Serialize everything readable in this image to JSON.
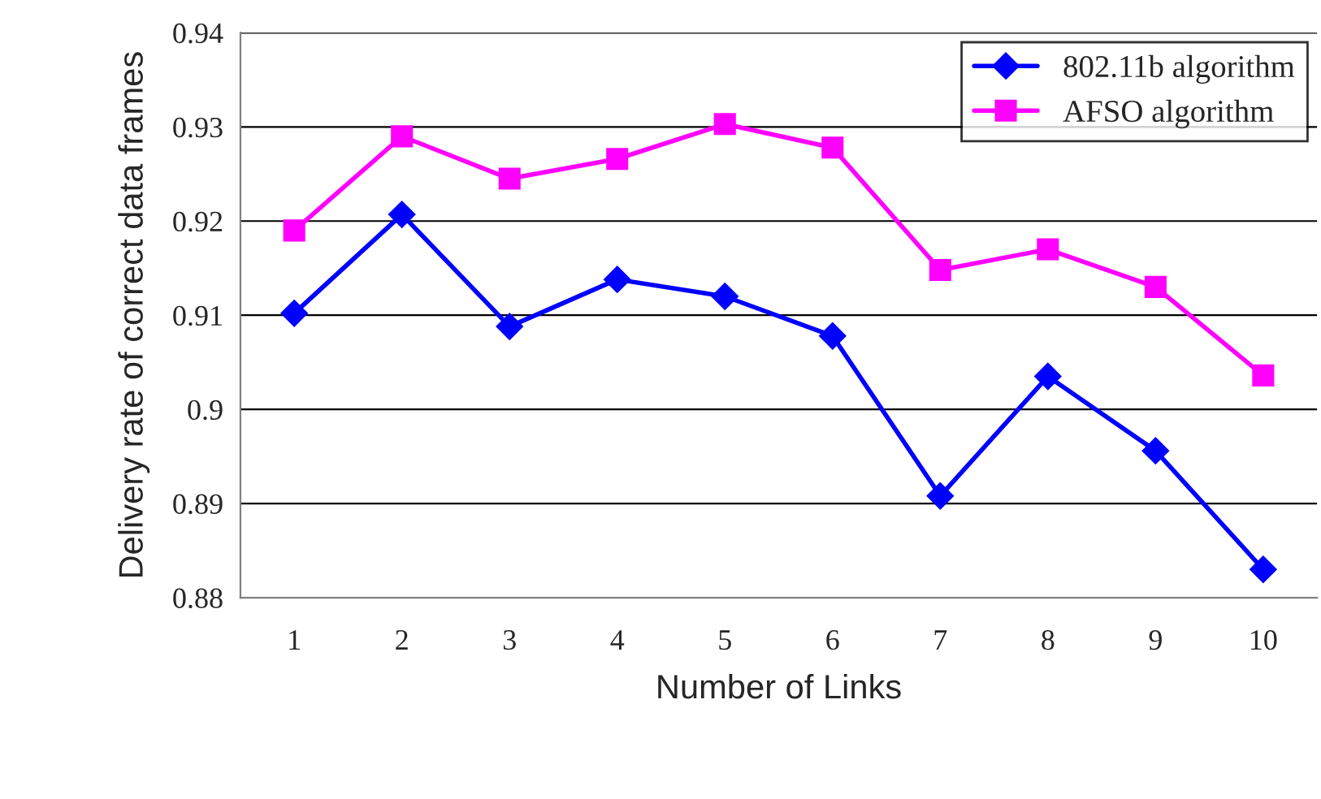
{
  "chart_data": {
    "type": "line",
    "xlabel": "Number of Links",
    "ylabel": "Delivery rate of correct data frames",
    "categories": [
      "1",
      "2",
      "3",
      "4",
      "5",
      "6",
      "7",
      "8",
      "9",
      "10"
    ],
    "series": [
      {
        "name": "802.11b algorithm",
        "color": "#0000ff",
        "marker": "diamond",
        "values": [
          0.9102,
          0.9207,
          0.9088,
          0.9138,
          0.912,
          0.9078,
          0.8908,
          0.9035,
          0.8956,
          0.883
        ]
      },
      {
        "name": "AFSO algorithm",
        "color": "#ff00ff",
        "marker": "square",
        "values": [
          0.919,
          0.929,
          0.9245,
          0.9266,
          0.9303,
          0.9278,
          0.9148,
          0.917,
          0.913,
          0.9036
        ]
      }
    ],
    "ylim": [
      0.88,
      0.94
    ],
    "yticks": [
      0.88,
      0.89,
      0.9,
      0.91,
      0.92,
      0.93,
      0.94
    ],
    "grid": "y",
    "legend": "top right",
    "line_style": "solid"
  }
}
